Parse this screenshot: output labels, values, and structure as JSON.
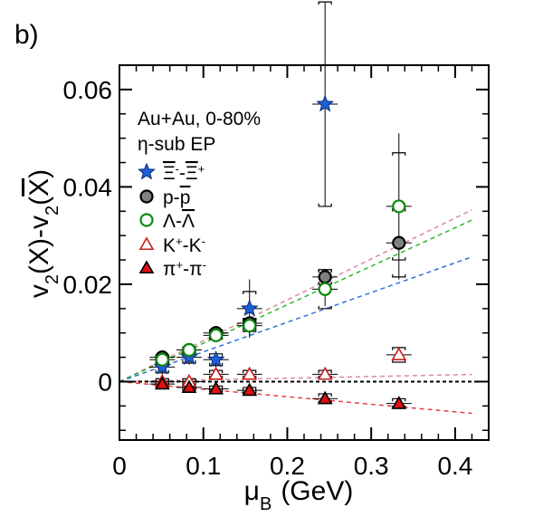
{
  "panel_label": "b)",
  "chart_data": {
    "type": "scatter",
    "xlabel": "μ",
    "xlabel_sub": "B",
    "xlabel_unit": "(GeV)",
    "ylabel": "v₂(X)-v₂(X̅)",
    "xlim": [
      0,
      0.44
    ],
    "ylim": [
      -0.012,
      0.065
    ],
    "xticks": [
      0,
      0.1,
      0.2,
      0.3,
      0.4
    ],
    "xtick_labels": [
      "0",
      "0.1",
      "0.2",
      "0.3",
      "0.4"
    ],
    "yticks": [
      0,
      0.02,
      0.04,
      0.06
    ],
    "ytick_labels": [
      "0",
      "0.02",
      "0.04",
      "0.06"
    ],
    "grid": false,
    "zero_line": true,
    "legend_position": "top-left",
    "annotations": [
      "Au+Au,  0-80%",
      "η-sub EP"
    ],
    "series": [
      {
        "name": "Ξ⁻-Ξ̅⁺",
        "marker": "star",
        "fill": "#1f5fd6",
        "stroke": "#0a2a7a",
        "points": [
          {
            "x": 0.051,
            "y": 0.003,
            "stat": 0.0015,
            "sys": 0.0012
          },
          {
            "x": 0.083,
            "y": 0.005,
            "stat": 0.0015,
            "sys": 0.0012
          },
          {
            "x": 0.115,
            "y": 0.0045,
            "stat": 0.0015,
            "sys": 0.0012
          },
          {
            "x": 0.155,
            "y": 0.015,
            "stat": 0.006,
            "sys": 0.0035
          },
          {
            "x": 0.245,
            "y": 0.057,
            "stat": 0.021,
            "sys": 0.021
          }
        ]
      },
      {
        "name": "p-p̅",
        "marker": "circle",
        "fill": "#808080",
        "stroke": "#000000",
        "points": [
          {
            "x": 0.051,
            "y": 0.005,
            "stat": 0.0004,
            "sys": 0.0005
          },
          {
            "x": 0.083,
            "y": 0.0065,
            "stat": 0.0004,
            "sys": 0.0005
          },
          {
            "x": 0.115,
            "y": 0.01,
            "stat": 0.0004,
            "sys": 0.0006
          },
          {
            "x": 0.155,
            "y": 0.012,
            "stat": 0.0005,
            "sys": 0.001
          },
          {
            "x": 0.245,
            "y": 0.0215,
            "stat": 0.0005,
            "sys": 0.0015
          },
          {
            "x": 0.333,
            "y": 0.0285,
            "stat": 0.0015,
            "sys": 0.007
          }
        ]
      },
      {
        "name": "Λ-Λ̅",
        "marker": "circle",
        "fill": "#ffffff",
        "stroke": "#0a8a0a",
        "points": [
          {
            "x": 0.051,
            "y": 0.0045,
            "stat": 0.0005,
            "sys": 0.0006
          },
          {
            "x": 0.083,
            "y": 0.0065,
            "stat": 0.0006,
            "sys": 0.0006
          },
          {
            "x": 0.115,
            "y": 0.0095,
            "stat": 0.0006,
            "sys": 0.0008
          },
          {
            "x": 0.155,
            "y": 0.0115,
            "stat": 0.002,
            "sys": 0.0012
          },
          {
            "x": 0.245,
            "y": 0.019,
            "stat": 0.0035,
            "sys": 0.004
          },
          {
            "x": 0.333,
            "y": 0.036,
            "stat": 0.015,
            "sys": 0.011
          }
        ]
      },
      {
        "name": "K⁺-K⁻",
        "marker": "triangle",
        "fill": "#ffffff",
        "stroke": "#c81e1e",
        "points": [
          {
            "x": 0.051,
            "y": 0.0,
            "stat": 0.0003,
            "sys": 0.0006
          },
          {
            "x": 0.083,
            "y": 0.0,
            "stat": 0.0003,
            "sys": 0.0006
          },
          {
            "x": 0.115,
            "y": 0.0015,
            "stat": 0.0003,
            "sys": 0.0008
          },
          {
            "x": 0.155,
            "y": 0.0015,
            "stat": 0.0003,
            "sys": 0.0008
          },
          {
            "x": 0.245,
            "y": 0.0015,
            "stat": 0.0005,
            "sys": 0.0008
          },
          {
            "x": 0.333,
            "y": 0.0055,
            "stat": 0.001,
            "sys": 0.0015
          }
        ]
      },
      {
        "name": "π⁺-π⁻",
        "marker": "triangle",
        "fill": "#e01010",
        "stroke": "#000000",
        "points": [
          {
            "x": 0.051,
            "y": -0.0005,
            "stat": 0.0002,
            "sys": 0.0006
          },
          {
            "x": 0.083,
            "y": -0.0012,
            "stat": 0.0002,
            "sys": 0.0006
          },
          {
            "x": 0.115,
            "y": -0.0015,
            "stat": 0.0002,
            "sys": 0.0006
          },
          {
            "x": 0.155,
            "y": -0.0018,
            "stat": 0.0002,
            "sys": 0.0006
          },
          {
            "x": 0.245,
            "y": -0.0035,
            "stat": 0.0002,
            "sys": 0.001
          },
          {
            "x": 0.333,
            "y": -0.0045,
            "stat": 0.0002,
            "sys": 0.001
          }
        ]
      }
    ],
    "fits": [
      {
        "color": "#d98a9a",
        "slope": 0.084
      },
      {
        "color": "#2db82d",
        "slope": 0.079
      },
      {
        "color": "#2f6fd6",
        "slope": 0.061
      },
      {
        "color": "#d98a9a",
        "slope": 0.0035
      },
      {
        "color": "#e84040",
        "slope": -0.0155
      }
    ],
    "fit_x_range": [
      0,
      0.42
    ]
  }
}
